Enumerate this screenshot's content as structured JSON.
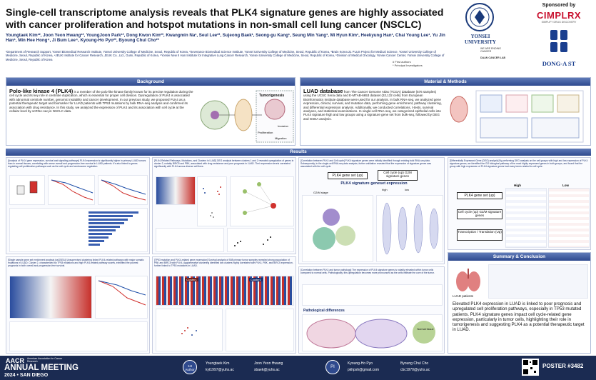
{
  "header": {
    "title": "Single-cell transcriptome analysis reveals that PLK4 signature genes are highly associated with cancer proliferation and hotspot mutations in non-small cell lung cancer (NSCLC)",
    "authors": "Youngtaek Kim¹², Joon Yeon Hwang¹², YoungJoon Park¹³, Dong Kwon Kim²³, Kwangmin Na¹, Seul Lee²³, Sujeong Baek¹, Seong-gu Kang¹, Seung Min Yang¹, Mi Hyun Kim¹, Heekyung Han¹, Chai Young Lee¹, Yu Jin Han¹, Min Hee Hong⁴, Ji Bum Lee⁴, Kyoung-Ho Pyo²³, Byoung Chul Cho²³",
    "affiliations": "¹Department of Research Support, Yonsei Biomedical Research Institute, Yonsei University College of Medicine, Seoul, Republic of Korea, ²Severance Biomedical Science Institute, Yonsei University College of Medicine, Seoul, Republic of Korea, ³Brain Korea 21 PLUS Project for Medical Science, Yonsei University College of Medicine, Seoul, Republic of Korea, ⁴JEUK Institute for Cancer Research, JEUK Co., Ltd., Gumi, Republic of Korea, ⁵Yonsei New II Han Institute for Integrative Lung Cancer Research, Yonsei University College of Medicine, Seoul, Republic of Korea, ⁶Division of Medical Oncology, Yonsei Cancer Center, Yonsei University College of Medicine, Seoul, Republic of Korea",
    "notes": [
      "# First authors",
      "* Principal Investigators"
    ],
    "sponsored_by": "Sponsored by",
    "sponsor1": "CIMPLRX",
    "sponsor1_tag": "SIMPLIFY DRUG DISCOVERY",
    "university": "YONSEI UNIVERSITY",
    "university_sub": "WE ARE ENDING CANCER",
    "lab": "DAAN CANCER LAB",
    "sponsor2": "DONG-A ST"
  },
  "background": {
    "heading": "Background",
    "lead": "Polo-like kinase 4 (PLK4)",
    "body": "is a member of the polo-like kinase family known for its precise regulation during the cell cycle and its key role in centriole duplication, which is essential for proper cell division. Dysregulation of PLK4 is associated with abnormal centriole number, genomic instability and cancer development. In our previous study, we proposed PLK4 as a potential therapeutic target and biomarker for LUAD patients with TP53 mutations by bulk RNA-seq analysis and confirmed its association with drug resistance. In this study, we analyzed the expression of PLK4 and its association with cell cycle at the cellular level by scRNA-seq in NSCLC data.",
    "diagram_labels": [
      "Tumorigenesis",
      "Proliferation",
      "Invasion",
      "Migration"
    ]
  },
  "methods": {
    "heading": "Material & Methods",
    "lead": "LUAD database",
    "body": "from The Cancer Genome Atlas (TCGA) database (576 samples) using the UCSC Xena data and E-MTAB-6653 dataset (32,132 cells) from European Bioinformatics Institute database were used for our analysis. In bulk RNA-seq, we analyzed gene expression, clinical, survival, and mutation data, performing gene enrichment, pathway clustering, and differential expression analysis. Additionally, we conducted correlations, t-tests, survival analyses, and statistical examinations. In single-cell RNA-seq, we categorized epithelial cells into PLK4 signature high and low groups using a signature gene set from bulk-seq, followed by DEG and GSEA analysis."
  },
  "results": {
    "heading": "Results",
    "p1_text": "[Analysis of PLK4 gene expression, survival and signaling pathways] PLK4 expression is significantly higher in primary LUAD tumors than in normal tissues, correlating with worse overall and progression-free survival in LUAD patients. It's also linked to genes regulating cell proliferation pathways such as the cell cycle and centrosome regulation.",
    "p2_text": "[PLK4-Related Pathways, Mutations, and Clusters in LUAD] DEG analysis between clusters 1 and 2 revealed upregulation of genes in cluster 2, notably BIRC5 and PBK, associated with drug resistance and poor prognosis in LUAD. Their expression levels correlated significantly with PLK4 across diverse cell lines.",
    "p3_text": "[Correlation between PLK4 and Cell cycle] PLK4 signature genes were initially identified through existing bulk RNA-seq data. Subsequently, in the single-cell RNA-seq data analysis, further validation revealed that the expression of signature genes was associated with the cell cycle.",
    "p3_box1": "PLK4 gene set (up)",
    "p3_box2": "Cell cycle (up) G2M signature genes",
    "p3_figtitle": "PLK4 signature geneset expression",
    "p3_high": "high",
    "p3_low": "low",
    "p3_g2m": "G2/M stage",
    "p4_text": "[Differentially Expressed Gene (DEG) analysis] By performing DEG analysis on the cell groups with high and low expression of PLK4 signature genes, we identified the GO biological pathway of the most highly expressed genes in both groups, and found that the group with high expression of PLK4 signature genes had many terms related to cell cycle.",
    "p4_box1": "PLK4 gene set (up)",
    "p4_box2": "Cell cycle (up) G2/M signature genes",
    "p4_box3": "Transcription / Translation (Up)",
    "p4_high": "High",
    "p4_low": "Low",
    "p5_text": "[Single sample gene set enrichment analysis (ssGSEA)] Unsupervised clustering linked PLK4-related pathways with major somatic mutations in LUAD. Cluster 2, characterized by TP53 mutations and high PLK4-related pathway scores, exhibited the poorest prognosis in both overall and progression-free survival.",
    "p6_text": "[TP53 mutation and PLK4-related gene expression] Survival analysis of 508 primary tumor samples revealed strong association of PBK and BIRC5 with PLK4. Agglomerative clustering identified two clusters highly correlated with PLK4, PBK, and BIRC5 expression, further linked to TP53 mutations in LUAD.",
    "p6_cluster1": "Cluster1",
    "p6_cluster2": "Cluster2",
    "p7_text": "[Correlation between PLK4 and tumor pathology] The expression of PLK4 signature genes is notably elevated within tumor cells compared to normal cells. Pathologically, this upregulation becomes more pronounced as the cells infiltrate the core of the tumor.",
    "p7_path": "Pathological differences",
    "p7_normal": "Normal tissue"
  },
  "summary": {
    "heading": "Summary & Conclusion",
    "luad_label": "LUAD patients",
    "conclusion": "Elevated PLK4 expression in LUAD is linked to poor prognosis and upregulated cell proliferation pathways, especially in TP53 mutated patients. PLK4 signature genes impact cell cycle-related gene expression, particularly in tumor cells, highlighting their role in tumorigenesis and suggesting PLK4 as a potential therapeutic target in LUAD."
  },
  "footer": {
    "meeting_line1": "AACR",
    "meeting_org": "American Association for Cancer Research",
    "meeting_line2": "ANNUAL MEETING",
    "meeting_line3": "2024 • SAN DIEGO",
    "first_author_badge": "1st Author",
    "author1_name": "Youngtaek Kim",
    "author1_email": "kyt1997@yuhs.ac",
    "author2_name": "Joon Yeon Hwang",
    "author2_email": "sbaek@yuhs.ac",
    "pi_badge": "PI",
    "pi1_name": "Kyoung-Ho Pyo",
    "pi1_email": "pkhpsh@gmail.com",
    "pi2_name": "Byoung Chul Cho",
    "pi2_email": "cbc1970@yuhs.ac",
    "poster": "POSTER #3482"
  },
  "colors": {
    "navy": "#1b2b52",
    "section": "#2f4a8e",
    "accent_red": "#d0312d"
  }
}
